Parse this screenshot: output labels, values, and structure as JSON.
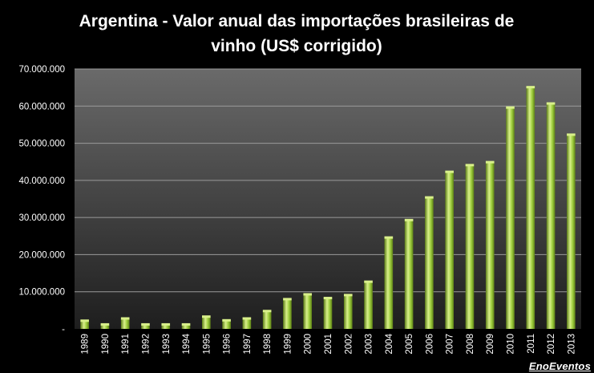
{
  "chart_data": {
    "type": "bar",
    "title_lines": [
      "Argentina - Valor anual das importações  brasileiras de",
      "vinho (US$ corrigido)"
    ],
    "categories": [
      "1989",
      "1990",
      "1991",
      "1992",
      "1993",
      "1994",
      "1995",
      "1996",
      "1997",
      "1998",
      "1999",
      "2000",
      "2001",
      "2002",
      "2003",
      "2004",
      "2005",
      "2006",
      "2007",
      "2008",
      "2009",
      "2010",
      "2011",
      "2012",
      "2013"
    ],
    "values": [
      2100000,
      1100000,
      2700000,
      1100000,
      1100000,
      1100000,
      3200000,
      2200000,
      2700000,
      4700000,
      7900000,
      9200000,
      8200000,
      9000000,
      12600000,
      24500000,
      29200000,
      35300000,
      42200000,
      44000000,
      44800000,
      59500000,
      65000000,
      60600000,
      52200000
    ],
    "yticks": [
      "-",
      "10.000.000",
      "20.000.000",
      "30.000.000",
      "40.000.000",
      "50.000.000",
      "60.000.000",
      "70.000.000"
    ],
    "ylim": [
      0,
      70000000
    ],
    "ystep": 10000000,
    "xlabel": "",
    "ylabel": "",
    "grid": true,
    "legend": "none",
    "colors": {
      "background": "#000000",
      "plot_area_top": "#6a6a6a",
      "plot_area_bottom": "#1e1e1e",
      "gridline": "#9a9a9a",
      "bar_light": "#d9f08a",
      "bar_mid": "#9ccc3c",
      "bar_dark": "#5d7f17",
      "text": "#ffffff"
    }
  },
  "watermark": "EnoEventos"
}
